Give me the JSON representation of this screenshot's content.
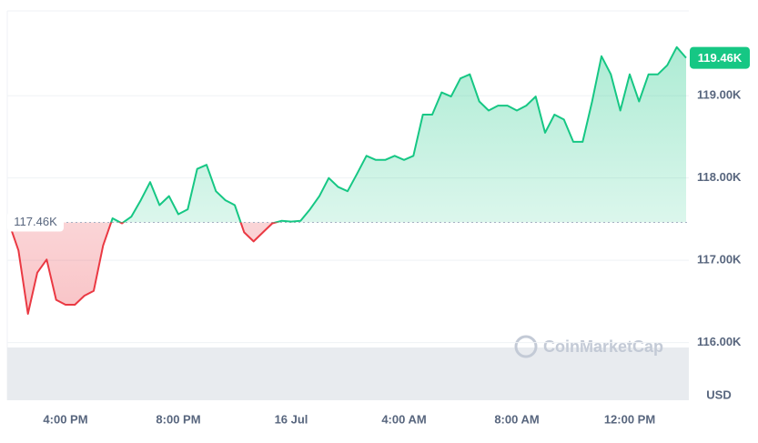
{
  "chart_data": {
    "type": "line",
    "categories": [
      null,
      null,
      null,
      null,
      null,
      null,
      "4:00 PM",
      null,
      null,
      null,
      null,
      null,
      null,
      null,
      null,
      null,
      null,
      null,
      "8:00 PM",
      null,
      null,
      null,
      null,
      null,
      null,
      null,
      null,
      null,
      null,
      null,
      "16 Jul",
      null,
      null,
      null,
      null,
      null,
      null,
      null,
      null,
      null,
      null,
      null,
      "4:00 AM",
      null,
      null,
      null,
      null,
      null,
      null,
      null,
      null,
      null,
      null,
      null,
      "8:00 AM",
      null,
      null,
      null,
      null,
      null,
      null,
      null,
      null,
      null,
      null,
      null,
      "12:00 PM",
      null,
      null,
      null,
      null,
      null,
      null
    ],
    "series": [
      {
        "color": "#16c784",
        "down_color": "#ea3943",
        "values": [
          117450,
          117120,
          116350,
          116850,
          117010,
          116520,
          116460,
          116460,
          116570,
          116630,
          117180,
          117510,
          117450,
          117530,
          117730,
          117950,
          117670,
          117780,
          117560,
          117620,
          118110,
          118160,
          117840,
          117730,
          117670,
          117340,
          117230,
          117340,
          117450,
          117480,
          117470,
          117480,
          117620,
          117780,
          118000,
          117890,
          117840,
          118050,
          118270,
          118220,
          118220,
          118270,
          118220,
          118270,
          118770,
          118770,
          119040,
          118990,
          119210,
          119260,
          118930,
          118820,
          118880,
          118880,
          118820,
          118880,
          118990,
          118550,
          118770,
          118710,
          118440,
          118440,
          118930,
          119480,
          119260,
          118820,
          119260,
          118930,
          119260,
          119260,
          119370,
          119590,
          119460
        ]
      }
    ],
    "baseline": {
      "value": 117460,
      "label": "117.46K"
    },
    "last_price": {
      "value": 119460,
      "label": "119.46K"
    },
    "ylim": [
      115300,
      120030
    ],
    "yticks": [
      {
        "value": 116000,
        "label": "116.00K"
      },
      {
        "value": 117000,
        "label": "117.00K"
      },
      {
        "value": 118000,
        "label": "118.00K"
      },
      {
        "value": 119000,
        "label": "119.00K"
      }
    ],
    "currency": "USD",
    "watermark": "CoinMarketCap",
    "grid": true
  }
}
